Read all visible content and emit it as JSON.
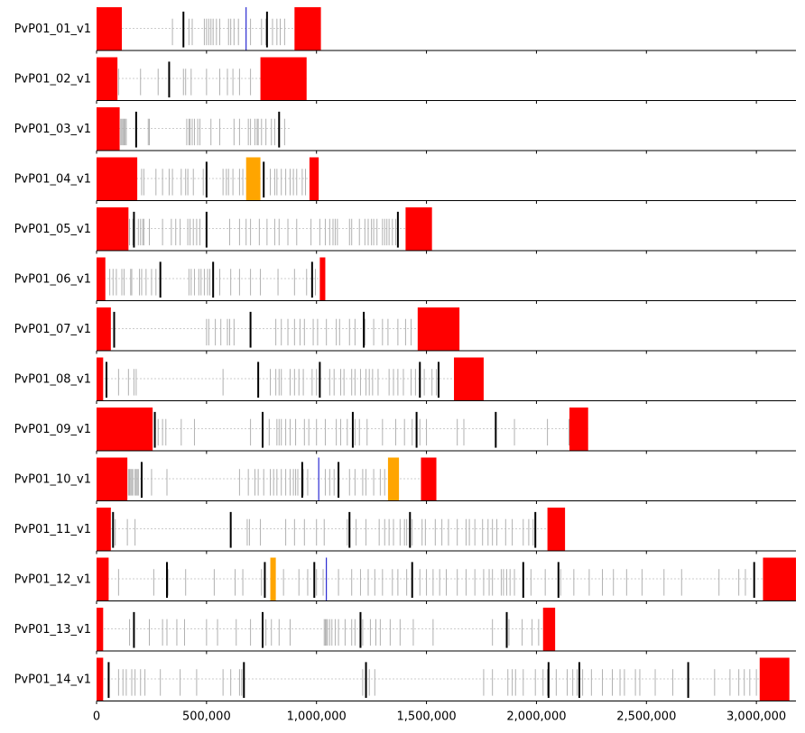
{
  "chart_data": {
    "type": "genome-track",
    "x_tick_labels": [
      "0",
      "500,000",
      "1,000,000",
      "1,500,000",
      "2,000,000",
      "2,500,000",
      "3,000,000"
    ],
    "x_ticks": [
      0,
      500000,
      1000000,
      1500000,
      2000000,
      2500000,
      3000000
    ],
    "xlim": [
      0,
      3180000
    ],
    "colors": {
      "subtelomere": "#ff0000",
      "internal_cluster": "#ffa500",
      "gene_grey": "#b0b0b0",
      "gene_black": "#000000",
      "gene_blue": "#0000c8",
      "baseline": "#cccccc"
    },
    "chromosomes": [
      {
        "name": "PvP01_01_v1",
        "length": 1020000,
        "blocks": [
          {
            "start": 0,
            "end": 115000,
            "color": "red"
          },
          {
            "start": 900000,
            "end": 1020000,
            "color": "red"
          }
        ],
        "genes_grey": [
          345000,
          420000,
          435000,
          490000,
          500000,
          510000,
          520000,
          530000,
          545000,
          560000,
          600000,
          610000,
          625000,
          645000,
          700000,
          750000,
          770000,
          800000,
          820000,
          835000,
          855000
        ],
        "genes_black": [
          395000,
          775000
        ],
        "genes_blue": [
          680000
        ]
      },
      {
        "name": "PvP01_02_v1",
        "length": 955000,
        "blocks": [
          {
            "start": 0,
            "end": 95000,
            "color": "red"
          },
          {
            "start": 745000,
            "end": 955000,
            "color": "red"
          }
        ],
        "genes_grey": [
          100000,
          200000,
          280000,
          395000,
          405000,
          430000,
          500000,
          560000,
          595000,
          620000,
          650000,
          700000
        ],
        "genes_black": [
          330000
        ],
        "genes_blue": []
      },
      {
        "name": "PvP01_03_v1",
        "length": 885000,
        "blocks": [
          {
            "start": 0,
            "end": 105000,
            "color": "red"
          }
        ],
        "genes_grey": [
          110000,
          115000,
          120000,
          125000,
          130000,
          135000,
          235000,
          240000,
          410000,
          420000,
          425000,
          435000,
          445000,
          460000,
          470000,
          520000,
          560000,
          625000,
          650000,
          690000,
          700000,
          720000,
          730000,
          735000,
          750000,
          770000,
          795000,
          810000,
          855000
        ],
        "genes_black": [
          180000,
          830000
        ],
        "genes_blue": []
      },
      {
        "name": "PvP01_04_v1",
        "length": 1010000,
        "blocks": [
          {
            "start": 0,
            "end": 185000,
            "color": "red"
          },
          {
            "start": 680000,
            "end": 745000,
            "color": "orange"
          },
          {
            "start": 968000,
            "end": 1010000,
            "color": "red"
          }
        ],
        "genes_grey": [
          205000,
          215000,
          270000,
          300000,
          330000,
          345000,
          385000,
          405000,
          415000,
          440000,
          485000,
          575000,
          590000,
          600000,
          620000,
          650000,
          665000,
          790000,
          810000,
          820000,
          840000,
          860000,
          880000,
          895000,
          910000,
          935000,
          950000
        ],
        "genes_black": [
          500000,
          760000
        ],
        "genes_blue": []
      },
      {
        "name": "PvP01_05_v1",
        "length": 1525000,
        "blocks": [
          {
            "start": 0,
            "end": 145000,
            "color": "red"
          },
          {
            "start": 1405000,
            "end": 1525000,
            "color": "red"
          }
        ],
        "genes_grey": [
          150000,
          165000,
          190000,
          200000,
          210000,
          215000,
          240000,
          300000,
          340000,
          360000,
          380000,
          415000,
          425000,
          440000,
          455000,
          470000,
          605000,
          650000,
          680000,
          700000,
          740000,
          775000,
          810000,
          830000,
          870000,
          910000,
          975000,
          1015000,
          1040000,
          1060000,
          1075000,
          1085000,
          1095000,
          1150000,
          1160000,
          1195000,
          1220000,
          1235000,
          1250000,
          1260000,
          1275000,
          1300000,
          1310000,
          1320000,
          1330000,
          1345000,
          1360000
        ],
        "genes_black": [
          170000,
          500000,
          1370000
        ],
        "genes_blue": []
      },
      {
        "name": "PvP01_06_v1",
        "length": 1040000,
        "blocks": [
          {
            "start": 0,
            "end": 40000,
            "color": "red"
          },
          {
            "start": 1015000,
            "end": 1040000,
            "color": "red"
          }
        ],
        "genes_grey": [
          60000,
          75000,
          90000,
          115000,
          125000,
          155000,
          160000,
          195000,
          205000,
          225000,
          250000,
          270000,
          420000,
          430000,
          445000,
          465000,
          475000,
          490000,
          505000,
          515000,
          560000,
          610000,
          650000,
          700000,
          745000,
          825000,
          900000,
          955000,
          995000
        ],
        "genes_black": [
          290000,
          530000,
          980000
        ],
        "genes_blue": []
      },
      {
        "name": "PvP01_07_v1",
        "length": 1650000,
        "blocks": [
          {
            "start": 0,
            "end": 65000,
            "color": "red"
          },
          {
            "start": 1460000,
            "end": 1650000,
            "color": "red"
          }
        ],
        "genes_grey": [
          500000,
          510000,
          540000,
          565000,
          595000,
          605000,
          625000,
          815000,
          840000,
          870000,
          900000,
          925000,
          945000,
          985000,
          1005000,
          1045000,
          1090000,
          1105000,
          1150000,
          1175000,
          1220000,
          1260000,
          1300000,
          1325000,
          1370000,
          1405000,
          1430000
        ],
        "genes_black": [
          80000,
          700000,
          1215000
        ],
        "genes_blue": []
      },
      {
        "name": "PvP01_08_v1",
        "length": 1760000,
        "blocks": [
          {
            "start": 0,
            "end": 30000,
            "color": "red"
          },
          {
            "start": 1625000,
            "end": 1760000,
            "color": "red"
          }
        ],
        "genes_grey": [
          100000,
          145000,
          170000,
          180000,
          575000,
          790000,
          815000,
          830000,
          840000,
          880000,
          900000,
          920000,
          940000,
          980000,
          1000000,
          1060000,
          1080000,
          1110000,
          1125000,
          1160000,
          1175000,
          1200000,
          1225000,
          1240000,
          1255000,
          1280000,
          1330000,
          1350000,
          1370000,
          1395000,
          1430000,
          1450000,
          1490000,
          1525000,
          1545000
        ],
        "genes_black": [
          45000,
          735000,
          1015000,
          1470000,
          1555000
        ],
        "genes_blue": []
      },
      {
        "name": "PvP01_09_v1",
        "length": 2235000,
        "blocks": [
          {
            "start": 0,
            "end": 255000,
            "color": "red"
          },
          {
            "start": 2150000,
            "end": 2235000,
            "color": "red"
          }
        ],
        "genes_grey": [
          280000,
          300000,
          315000,
          385000,
          445000,
          700000,
          785000,
          820000,
          830000,
          840000,
          860000,
          880000,
          905000,
          945000,
          965000,
          1000000,
          1040000,
          1090000,
          1110000,
          1140000,
          1175000,
          1195000,
          1230000,
          1300000,
          1360000,
          1400000,
          1435000,
          1470000,
          1500000,
          1640000,
          1670000,
          1900000,
          2050000,
          2148000
        ],
        "genes_black": [
          265000,
          755000,
          1165000,
          1455000,
          1815000
        ],
        "genes_blue": []
      },
      {
        "name": "PvP01_10_v1",
        "length": 1545000,
        "blocks": [
          {
            "start": 0,
            "end": 140000,
            "color": "red"
          },
          {
            "start": 1325000,
            "end": 1375000,
            "color": "orange"
          },
          {
            "start": 1475000,
            "end": 1545000,
            "color": "red"
          }
        ],
        "genes_grey": [
          145000,
          150000,
          155000,
          160000,
          165000,
          175000,
          180000,
          185000,
          190000,
          250000,
          320000,
          650000,
          690000,
          720000,
          735000,
          760000,
          790000,
          805000,
          820000,
          840000,
          860000,
          880000,
          895000,
          905000,
          915000,
          940000,
          960000,
          1040000,
          1060000,
          1080000,
          1150000,
          1175000,
          1210000,
          1225000,
          1260000,
          1290000,
          1310000
        ],
        "genes_black": [
          205000,
          935000,
          1100000
        ],
        "genes_blue": [
          1010000
        ]
      },
      {
        "name": "PvP01_11_v1",
        "length": 2130000,
        "blocks": [
          {
            "start": 0,
            "end": 65000,
            "color": "red"
          },
          {
            "start": 2050000,
            "end": 2130000,
            "color": "red"
          }
        ],
        "genes_grey": [
          85000,
          140000,
          175000,
          610000,
          685000,
          695000,
          745000,
          860000,
          900000,
          945000,
          1000000,
          1035000,
          1140000,
          1180000,
          1225000,
          1285000,
          1310000,
          1330000,
          1350000,
          1380000,
          1400000,
          1410000,
          1435000,
          1480000,
          1495000,
          1540000,
          1570000,
          1600000,
          1640000,
          1680000,
          1695000,
          1720000,
          1755000,
          1780000,
          1800000,
          1820000,
          1860000,
          1890000,
          1940000,
          1965000,
          1985000
        ],
        "genes_black": [
          75000,
          610000,
          1150000,
          1425000,
          1995000
        ],
        "genes_blue": []
      },
      {
        "name": "PvP01_12_v1",
        "length": 3180000,
        "blocks": [
          {
            "start": 0,
            "end": 55000,
            "color": "red"
          },
          {
            "start": 790000,
            "end": 815000,
            "color": "orange"
          },
          {
            "start": 3030000,
            "end": 3180000,
            "color": "red"
          }
        ],
        "genes_grey": [
          100000,
          260000,
          325000,
          405000,
          535000,
          630000,
          665000,
          750000,
          765000,
          850000,
          920000,
          960000,
          1000000,
          1030000,
          1100000,
          1160000,
          1200000,
          1235000,
          1265000,
          1300000,
          1345000,
          1370000,
          1410000,
          1470000,
          1500000,
          1530000,
          1560000,
          1590000,
          1640000,
          1680000,
          1720000,
          1760000,
          1785000,
          1800000,
          1840000,
          1850000,
          1865000,
          1880000,
          1900000,
          1975000,
          2040000,
          2110000,
          2170000,
          2240000,
          2300000,
          2350000,
          2410000,
          2480000,
          2580000,
          2660000,
          2830000,
          2920000,
          2950000
        ],
        "genes_black": [
          320000,
          765000,
          990000,
          1435000,
          1940000,
          2100000,
          2990000
        ],
        "genes_blue": [
          1045000
        ]
      },
      {
        "name": "PvP01_13_v1",
        "length": 2085000,
        "blocks": [
          {
            "start": 0,
            "end": 30000,
            "color": "red"
          },
          {
            "start": 2030000,
            "end": 2085000,
            "color": "red"
          }
        ],
        "genes_grey": [
          150000,
          240000,
          300000,
          320000,
          365000,
          400000,
          500000,
          550000,
          635000,
          700000,
          770000,
          795000,
          830000,
          880000,
          1035000,
          1040000,
          1045000,
          1050000,
          1060000,
          1070000,
          1085000,
          1100000,
          1130000,
          1160000,
          1175000,
          1210000,
          1245000,
          1270000,
          1290000,
          1335000,
          1380000,
          1440000,
          1530000,
          1800000,
          1875000,
          1935000,
          1980000,
          2010000
        ],
        "genes_black": [
          170000,
          755000,
          1200000,
          1865000
        ],
        "genes_blue": []
      },
      {
        "name": "PvP01_14_v1",
        "length": 3150000,
        "blocks": [
          {
            "start": 0,
            "end": 30000,
            "color": "red"
          },
          {
            "start": 3015000,
            "end": 3150000,
            "color": "red"
          }
        ],
        "genes_grey": [
          100000,
          120000,
          135000,
          160000,
          175000,
          200000,
          220000,
          290000,
          380000,
          455000,
          575000,
          610000,
          650000,
          660000,
          670000,
          1210000,
          1240000,
          1265000,
          1760000,
          1800000,
          1870000,
          1890000,
          1905000,
          1940000,
          1995000,
          2030000,
          2050000,
          2090000,
          2140000,
          2165000,
          2185000,
          2210000,
          2250000,
          2300000,
          2345000,
          2380000,
          2400000,
          2450000,
          2470000,
          2540000,
          2620000,
          2810000,
          2880000,
          2920000,
          2945000,
          2970000,
          3000000
        ],
        "genes_black": [
          55000,
          670000,
          1225000,
          2055000,
          2195000,
          2690000
        ],
        "genes_blue": []
      }
    ]
  }
}
